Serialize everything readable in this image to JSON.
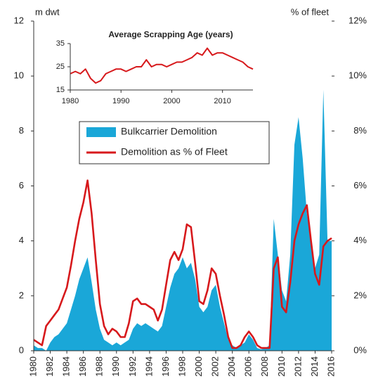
{
  "chart_data": [
    {
      "type": "area",
      "ylabel": "m dwt",
      "y2label": "% of fleet",
      "x": [
        1980,
        1980.5,
        1981,
        1981.5,
        1982,
        1982.5,
        1983,
        1983.5,
        1984,
        1984.5,
        1985,
        1985.5,
        1986,
        1986.5,
        1987,
        1987.5,
        1988,
        1988.5,
        1989,
        1989.5,
        1990,
        1990.5,
        1991,
        1991.5,
        1992,
        1992.5,
        1993,
        1993.5,
        1994,
        1994.5,
        1995,
        1995.5,
        1996,
        1996.5,
        1997,
        1997.5,
        1998,
        1998.5,
        1999,
        1999.5,
        2000,
        2000.5,
        2001,
        2001.5,
        2002,
        2002.5,
        2003,
        2003.5,
        2004,
        2004.5,
        2005,
        2005.5,
        2006,
        2006.5,
        2007,
        2007.5,
        2008,
        2008.5,
        2009,
        2009.5,
        2010,
        2010.5,
        2011,
        2011.5,
        2012,
        2012.5,
        2013,
        2013.5,
        2014,
        2014.5,
        2015,
        2015.5,
        2016
      ],
      "series": [
        {
          "name": "Bulkcarrier Demolition",
          "type": "area",
          "color": "#1aa7d8",
          "values": [
            0.2,
            0.1,
            0.1,
            0,
            0.3,
            0.5,
            0.6,
            0.8,
            1.0,
            1.5,
            2.0,
            2.6,
            3.0,
            3.4,
            2.5,
            1.5,
            0.8,
            0.4,
            0.3,
            0.2,
            0.3,
            0.2,
            0.3,
            0.4,
            0.8,
            1.0,
            0.9,
            1.0,
            0.9,
            0.8,
            0.7,
            0.9,
            1.6,
            2.3,
            2.8,
            3.0,
            3.4,
            3.0,
            3.2,
            2.6,
            1.6,
            1.4,
            1.6,
            2.2,
            2.4,
            1.6,
            1.0,
            0.4,
            0.2,
            0.1,
            0.2,
            0.3,
            0.6,
            0.4,
            0.1,
            0.05,
            0.1,
            0.2,
            4.8,
            3.5,
            2.2,
            1.8,
            3.5,
            7.5,
            8.5,
            7.0,
            5.0,
            4.0,
            3.0,
            3.5,
            9.5,
            4.0,
            4.0
          ]
        },
        {
          "name": "Demolition as % of Fleet",
          "type": "line",
          "axis": "y2",
          "color": "#d7191c",
          "values": [
            0.4,
            0.3,
            0.2,
            0.9,
            1.1,
            1.3,
            1.5,
            1.9,
            2.3,
            3.1,
            4.0,
            4.8,
            5.4,
            6.2,
            5.0,
            3.3,
            1.7,
            0.9,
            0.6,
            0.8,
            0.7,
            0.5,
            0.5,
            1.0,
            1.8,
            1.9,
            1.7,
            1.7,
            1.6,
            1.5,
            1.1,
            1.5,
            2.4,
            3.3,
            3.6,
            3.3,
            3.7,
            4.6,
            4.5,
            3.2,
            1.8,
            1.7,
            2.2,
            3.0,
            2.8,
            2.0,
            1.3,
            0.5,
            0.1,
            0.1,
            0.2,
            0.5,
            0.7,
            0.5,
            0.2,
            0.1,
            0.1,
            0.1,
            3.0,
            3.4,
            1.6,
            1.4,
            2.5,
            4.0,
            4.6,
            5.0,
            5.3,
            4.0,
            2.8,
            2.4,
            3.8,
            4.0,
            4.1
          ]
        }
      ],
      "xlim": [
        1980,
        2016
      ],
      "xticks": [
        1980,
        1982,
        1984,
        1986,
        1988,
        1990,
        1992,
        1994,
        1996,
        1998,
        2000,
        2002,
        2004,
        2006,
        2008,
        2010,
        2012,
        2014,
        2016
      ],
      "ylim": [
        0,
        12
      ],
      "yticks": [
        0,
        2,
        4,
        6,
        8,
        10,
        12
      ],
      "y2lim": [
        0,
        12
      ],
      "y2ticks": [
        {
          "value": 0,
          "label": "0%"
        },
        {
          "value": 2,
          "label": "2%"
        },
        {
          "value": 4,
          "label": "4%"
        },
        {
          "value": 6,
          "label": "6%"
        },
        {
          "value": 8,
          "label": "8%"
        },
        {
          "value": 10,
          "label": "10%"
        },
        {
          "value": 12,
          "label": "12%"
        }
      ]
    },
    {
      "type": "line",
      "title": "Average Scrapping  Age (years)",
      "x": [
        1980,
        1981,
        1982,
        1983,
        1984,
        1985,
        1986,
        1987,
        1988,
        1989,
        1990,
        1991,
        1992,
        1993,
        1994,
        1995,
        1996,
        1997,
        1998,
        1999,
        2000,
        2001,
        2002,
        2003,
        2004,
        2005,
        2006,
        2007,
        2008,
        2009,
        2010,
        2011,
        2012,
        2013,
        2014,
        2015,
        2016
      ],
      "series": [
        {
          "name": null,
          "color": "#d7191c",
          "values": [
            22,
            23,
            22,
            24,
            20,
            18,
            19,
            22,
            23,
            24,
            24,
            23,
            24,
            25,
            25,
            28,
            25,
            26,
            26,
            25,
            26,
            27,
            27,
            28,
            29,
            31,
            30,
            33,
            30,
            31,
            31,
            30,
            29,
            28,
            27,
            25,
            24
          ]
        }
      ],
      "xlim": [
        1980,
        2016
      ],
      "xticks": [
        1980,
        1990,
        2000,
        2010
      ],
      "ylim": [
        15,
        35
      ],
      "yticks": [
        15,
        25,
        35
      ]
    }
  ]
}
